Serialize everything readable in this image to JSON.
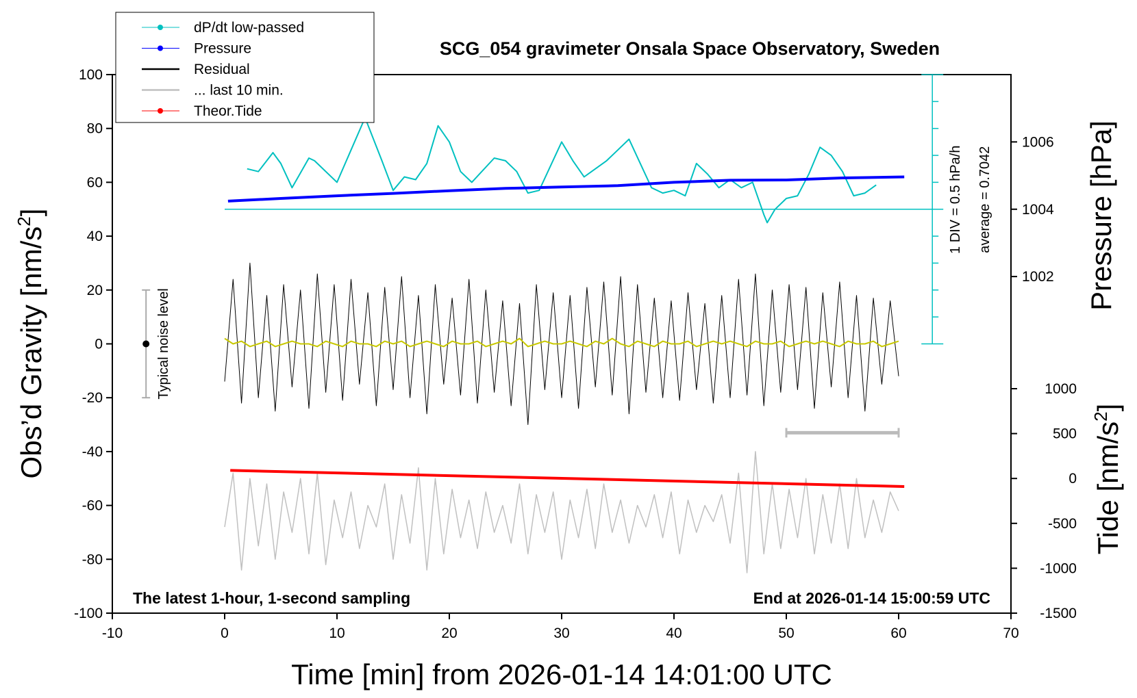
{
  "chart_data": {
    "type": "line",
    "title": "SCG_054 gravimeter Onsala Space Observatory, Sweden",
    "xlabel": "Time [min] from 2026-01-14 14:01:00 UTC",
    "ylabel": [
      "Obs’d Gravity [nm/s",
      "2",
      "]"
    ],
    "y2label": "Pressure [hPa]",
    "y3label": [
      "Tide [nm/s",
      "2",
      "]"
    ],
    "note_left": "The latest 1-hour, 1-second sampling",
    "note_right": "End at 2026-01-14 15:00:59 UTC",
    "dpdt_div": "1 DIV = 0.5 hPa/h",
    "dpdt_average": "average = 0.7042",
    "xlim": [
      -10,
      70
    ],
    "xticks": [
      -10,
      0,
      10,
      20,
      30,
      40,
      50,
      60,
      70
    ],
    "ylim": [
      -100,
      100
    ],
    "yticks": [
      -100,
      -80,
      -60,
      -40,
      -20,
      0,
      20,
      40,
      60,
      80,
      100
    ],
    "y2lim": [
      1000,
      1008
    ],
    "y2ticks": [
      1002,
      1004,
      1006
    ],
    "y3lim": [
      -1500,
      1000
    ],
    "y3ticks": [
      -1500,
      -1000,
      -500,
      0,
      500,
      1000
    ],
    "x": [
      0,
      0.75,
      1.5,
      2.25,
      3,
      3.75,
      4.5,
      5.25,
      6,
      6.75,
      7.5,
      8.25,
      9,
      9.75,
      10.5,
      11.25,
      12,
      12.75,
      13.5,
      14.25,
      15,
      15.75,
      16.5,
      17.25,
      18,
      18.75,
      19.5,
      20.25,
      21,
      21.75,
      22.5,
      23.25,
      24,
      24.75,
      25.5,
      26.25,
      27,
      27.75,
      28.5,
      29.25,
      30,
      30.75,
      31.5,
      32.25,
      33,
      33.75,
      34.5,
      35.25,
      36,
      36.75,
      37.5,
      38.25,
      39,
      39.75,
      40.5,
      41.25,
      42,
      42.75,
      43.5,
      44.25,
      45,
      45.75,
      46.5,
      47.25,
      48,
      48.75,
      49.5,
      50.25,
      51,
      51.75,
      52.5,
      53.25,
      54,
      54.75,
      55.5,
      56.25,
      57,
      57.75,
      58.5,
      59.25,
      60
    ],
    "series": [
      {
        "name": "dP/dt low-passed",
        "color": "#00c0c0",
        "marker": true,
        "width": 2,
        "x": [
          2,
          3,
          4.3,
          5,
          6,
          7.5,
          8,
          10,
          12.5,
          14,
          15,
          16,
          17,
          18,
          19,
          20,
          21,
          22,
          24,
          25,
          26,
          27,
          28,
          30,
          31,
          32,
          34,
          35,
          36,
          37,
          38,
          39,
          40,
          41,
          42,
          43,
          44,
          45,
          46,
          47,
          48,
          48.3,
          49,
          50,
          51,
          52,
          53,
          54,
          55,
          56,
          57,
          58
        ],
        "values": [
          65,
          64,
          71,
          67,
          58,
          69,
          68,
          60,
          84,
          68,
          57,
          62,
          61,
          67,
          81,
          75,
          64,
          60,
          69,
          68,
          64,
          56,
          57,
          75,
          68,
          62,
          68,
          72,
          76,
          67,
          58,
          56,
          57,
          55,
          67,
          63,
          58,
          61,
          58,
          60,
          48,
          45,
          50,
          54,
          55,
          63,
          73,
          70,
          64,
          55,
          56,
          59
        ]
      },
      {
        "name": "Pressure",
        "color": "#0000ff",
        "marker": true,
        "axis": "y2",
        "width": 4,
        "x": [
          0.3,
          5,
          10,
          15,
          20,
          25,
          30,
          35,
          40,
          45,
          50,
          55,
          60.5
        ],
        "values": [
          1004.24,
          1004.32,
          1004.4,
          1004.47,
          1004.55,
          1004.62,
          1004.66,
          1004.7,
          1004.8,
          1004.86,
          1004.87,
          1004.93,
          1004.96
        ]
      },
      {
        "name": "Residual",
        "color": "#000000",
        "width": 1,
        "values": [
          -14,
          24,
          -22,
          30,
          -20,
          18,
          -25,
          22,
          -16,
          20,
          -24,
          26,
          -18,
          22,
          -21,
          24,
          -15,
          19,
          -23,
          21,
          -17,
          25,
          -20,
          18,
          -26,
          22,
          -15,
          17,
          -19,
          24,
          -22,
          20,
          -18,
          16,
          -23,
          15,
          -30,
          22,
          -17,
          19,
          -20,
          18,
          -24,
          21,
          -16,
          23,
          -19,
          25,
          -26,
          22,
          -18,
          17,
          -20,
          16,
          -21,
          19,
          -17,
          15,
          -22,
          18,
          -20,
          24,
          -19,
          26,
          -23,
          20,
          -18,
          22,
          -17,
          21,
          -24,
          19,
          -16,
          23,
          -20,
          18,
          -25,
          17,
          -15,
          16,
          -12
        ]
      },
      {
        "color": "#c8c800",
        "width": 2,
        "values": [
          2,
          0,
          1,
          -1,
          0,
          1,
          -1,
          0,
          1,
          0,
          0,
          -1,
          1,
          0,
          -1,
          1,
          0,
          0,
          -1,
          1,
          0,
          1,
          -1,
          0,
          1,
          0,
          -1,
          1,
          0,
          0,
          1,
          -1,
          0,
          1,
          0,
          2,
          -1,
          0,
          1,
          0,
          0,
          1,
          0,
          -1,
          1,
          0,
          2,
          0,
          -1,
          1,
          0,
          -1,
          1,
          0,
          0,
          1,
          -1,
          0,
          1,
          0,
          1,
          0,
          -1,
          1,
          0,
          0,
          1,
          -1,
          0,
          1,
          0,
          1,
          0,
          -1,
          1,
          0,
          0,
          1,
          -1,
          0,
          1
        ]
      },
      {
        "name": "... last 10 min.",
        "color": "#c0c0c0",
        "width": 1.5,
        "values": [
          -68,
          -48,
          -84,
          -50,
          -75,
          -52,
          -80,
          -55,
          -70,
          -50,
          -78,
          -48,
          -82,
          -58,
          -72,
          -55,
          -76,
          -60,
          -68,
          -52,
          -80,
          -56,
          -74,
          -46,
          -84,
          -50,
          -78,
          -54,
          -72,
          -58,
          -76,
          -55,
          -70,
          -60,
          -74,
          -52,
          -78,
          -56,
          -70,
          -55,
          -80,
          -58,
          -72,
          -54,
          -76,
          -52,
          -70,
          -58,
          -74,
          -60,
          -68,
          -56,
          -72,
          -55,
          -78,
          -58,
          -70,
          -60,
          -66,
          -56,
          -74,
          -48,
          -85,
          -40,
          -78,
          -52,
          -76,
          -54,
          -72,
          -50,
          -78,
          -56,
          -74,
          -52,
          -76,
          -50,
          -72,
          -58,
          -70,
          -55,
          -62
        ]
      },
      {
        "name": "Theor.Tide",
        "color": "#ff0000",
        "marker": true,
        "axis": "y3",
        "width": 4,
        "x": [
          0.5,
          60.5
        ],
        "values": [
          90,
          -90
        ]
      }
    ],
    "dpdt_scale": {
      "x": 63,
      "baseline": 50,
      "baseline_x": [
        0,
        63
      ],
      "ticks": [
        0,
        10,
        20,
        30,
        40,
        50,
        60,
        70,
        80,
        90,
        100
      ]
    },
    "noise_bar": {
      "x": -7,
      "low": -20,
      "high": 20,
      "center": 0,
      "label": "Typical noise level"
    },
    "last10_bar": {
      "x": [
        50,
        60
      ],
      "y": -33
    }
  }
}
